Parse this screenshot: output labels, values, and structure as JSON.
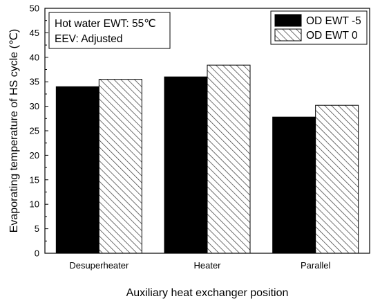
{
  "chart_data": {
    "type": "bar",
    "categories": [
      "Desuperheater",
      "Heater",
      "Parallel"
    ],
    "series": [
      {
        "name": "OD EWT -5",
        "values": [
          34.0,
          36.0,
          27.8
        ],
        "fill": "#000000",
        "pattern": "solid"
      },
      {
        "name": "OD EWT 0",
        "values": [
          35.5,
          38.4,
          30.2
        ],
        "fill": "#ffffff",
        "pattern": "diagonal-hatch"
      }
    ],
    "title": "",
    "xlabel": "Auxiliary heat exchanger position",
    "ylabel": "Evaporating temperature of HS cycle (",
    "ylabel_unit": "℃)",
    "ylim": [
      0,
      50
    ],
    "yticks": [
      "0",
      "5",
      "10",
      "15",
      "20",
      "25",
      "30",
      "35",
      "40",
      "45",
      "50"
    ],
    "grid": false,
    "legend_position": "top-right",
    "annotation": {
      "line1": "Hot water EWT: 55",
      "line1_unit": "℃",
      "line2": "EEV: Adjusted"
    }
  }
}
